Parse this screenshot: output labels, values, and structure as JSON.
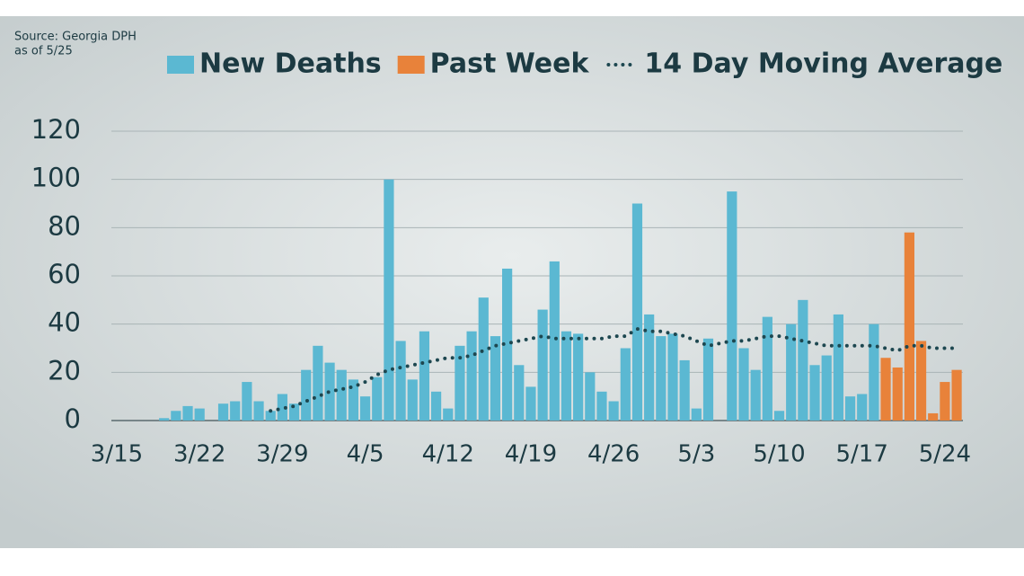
{
  "chart_data": {
    "type": "bar",
    "source": [
      "Source: Georgia DPH",
      "as of 5/25"
    ],
    "categories": [
      "3/15",
      "3/16",
      "3/17",
      "3/18",
      "3/19",
      "3/20",
      "3/21",
      "3/22",
      "3/23",
      "3/24",
      "3/25",
      "3/26",
      "3/27",
      "3/28",
      "3/29",
      "3/30",
      "3/31",
      "4/1",
      "4/2",
      "4/3",
      "4/4",
      "4/5",
      "4/6",
      "4/7",
      "4/8",
      "4/9",
      "4/10",
      "4/11",
      "4/12",
      "4/13",
      "4/14",
      "4/15",
      "4/16",
      "4/17",
      "4/18",
      "4/19",
      "4/20",
      "4/21",
      "4/22",
      "4/23",
      "4/24",
      "4/25",
      "4/26",
      "4/27",
      "4/28",
      "4/29",
      "4/30",
      "5/1",
      "5/2",
      "5/3",
      "5/4",
      "5/5",
      "5/6",
      "5/7",
      "5/8",
      "5/9",
      "5/10",
      "5/11",
      "5/12",
      "5/13",
      "5/14",
      "5/15",
      "5/16",
      "5/17",
      "5/18",
      "5/19",
      "5/20",
      "5/21",
      "5/22",
      "5/23",
      "5/24",
      "5/25"
    ],
    "series": [
      {
        "name": "New Deaths",
        "color": "#5bb8d2",
        "style": "bar",
        "values": [
          0,
          0,
          0,
          0,
          1,
          4,
          6,
          5,
          0,
          7,
          8,
          16,
          8,
          4,
          11,
          7,
          21,
          31,
          24,
          21,
          17,
          10,
          18,
          100,
          33,
          17,
          37,
          12,
          5,
          31,
          37,
          51,
          35,
          63,
          23,
          14,
          46,
          66,
          37,
          36,
          20,
          12,
          8,
          30,
          90,
          44,
          35,
          36,
          25,
          5,
          34,
          0,
          95,
          30,
          21,
          43,
          4,
          40,
          50,
          23,
          27,
          44,
          10,
          11,
          40,
          null,
          null,
          null,
          null,
          null,
          null,
          null
        ]
      },
      {
        "name": "Past Week",
        "color": "#e8823a",
        "style": "bar",
        "values": [
          null,
          null,
          null,
          null,
          null,
          null,
          null,
          null,
          null,
          null,
          null,
          null,
          null,
          null,
          null,
          null,
          null,
          null,
          null,
          null,
          null,
          null,
          null,
          null,
          null,
          null,
          null,
          null,
          null,
          null,
          null,
          null,
          null,
          null,
          null,
          null,
          null,
          null,
          null,
          null,
          null,
          null,
          null,
          null,
          null,
          null,
          null,
          null,
          null,
          null,
          null,
          null,
          null,
          null,
          null,
          null,
          null,
          null,
          null,
          null,
          null,
          null,
          null,
          null,
          null,
          26,
          22,
          78,
          33,
          3,
          16,
          21
        ]
      },
      {
        "name": "14 Day Moving Average",
        "color": "#1d4750",
        "style": "dotted",
        "values": [
          null,
          null,
          null,
          null,
          null,
          null,
          null,
          null,
          null,
          null,
          null,
          null,
          null,
          4,
          5,
          6,
          8,
          10,
          12,
          13,
          14,
          16,
          19,
          21,
          22,
          23,
          24,
          25,
          26,
          26,
          27,
          29,
          31,
          32,
          33,
          34,
          35,
          34,
          34,
          34,
          34,
          34,
          35,
          35,
          38,
          37,
          37,
          36,
          35,
          33,
          31,
          32,
          33,
          33,
          34,
          35,
          35,
          34,
          33,
          32,
          31,
          31,
          31,
          31,
          31,
          30,
          29,
          31,
          31,
          30,
          30,
          30
        ]
      }
    ],
    "xticks": [
      "3/15",
      "3/22",
      "3/29",
      "4/5",
      "4/12",
      "4/19",
      "4/26",
      "5/3",
      "5/10",
      "5/17",
      "5/24"
    ],
    "ylim": [
      0,
      120
    ],
    "yticks": [
      0,
      20,
      40,
      60,
      80,
      100,
      120
    ],
    "grid": true
  }
}
